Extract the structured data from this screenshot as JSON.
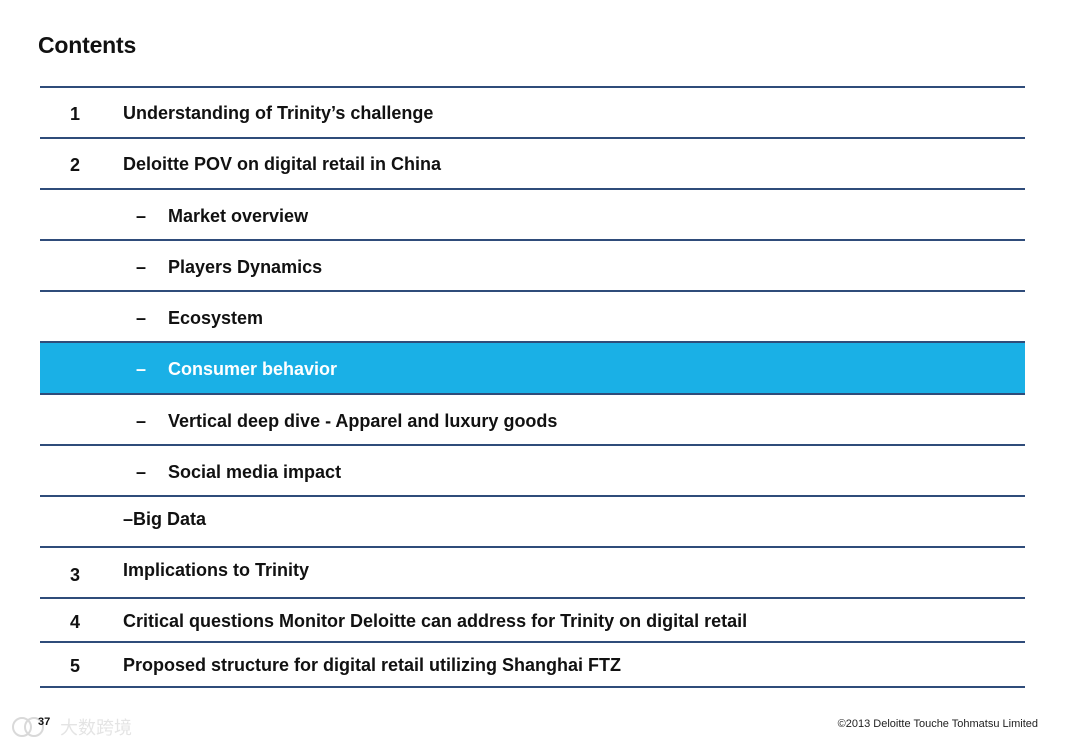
{
  "title": "Contents",
  "items": [
    {
      "num": "1",
      "text": "Understanding of Trinity’s challenge"
    },
    {
      "num": "2",
      "text": "Deloitte POV on digital retail in China"
    },
    {
      "dash": "–",
      "text": "Market overview"
    },
    {
      "dash": "–",
      "text": "Players Dynamics"
    },
    {
      "dash": "–",
      "text": "Ecosystem"
    },
    {
      "dash": "–",
      "text": "Consumer behavior"
    },
    {
      "dash": "–",
      "text": "Vertical deep dive - Apparel and luxury goods"
    },
    {
      "dash": "–",
      "text": "Social media impact"
    },
    {
      "text": "–Big Data"
    },
    {
      "num": "3",
      "text": "Implications to Trinity"
    },
    {
      "num": "4",
      "text": "Critical questions Monitor Deloitte can address for Trinity on digital retail"
    },
    {
      "num": "5",
      "text": "Proposed structure for digital retail utilizing Shanghai FTZ"
    }
  ],
  "active_item": "Consumer behavior",
  "footer": {
    "page_number": "37",
    "copyright": "©2013 Deloitte Touche Tohmatsu Limited",
    "watermark": "大数跨境"
  },
  "colors": {
    "rule": "#2f4c7a",
    "highlight": "#1ab0e6"
  }
}
